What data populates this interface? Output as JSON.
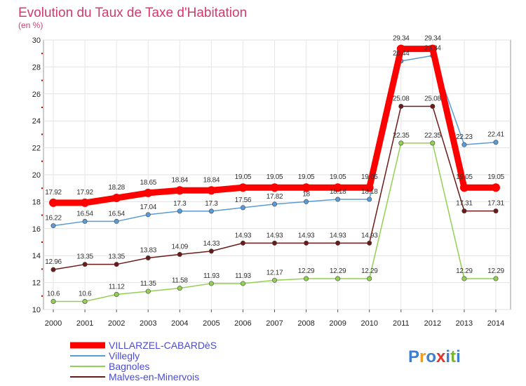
{
  "chart_data": {
    "type": "line",
    "title": "Evolution du Taux de Taxe d'Habitation",
    "subtitle": "(en %)",
    "xlabel": "",
    "ylabel": "",
    "x": [
      "2000",
      "2001",
      "2002",
      "2003",
      "2004",
      "2005",
      "2006",
      "2007",
      "2008",
      "2009",
      "2010",
      "2011",
      "2012",
      "2013",
      "2014"
    ],
    "ylim": [
      10,
      30
    ],
    "yticks": [
      "10",
      "12",
      "14",
      "16",
      "18",
      "20",
      "22",
      "24",
      "26",
      "28",
      "30"
    ],
    "grid": true,
    "legend_position": "bottom-left",
    "series": [
      {
        "name": "VILLARZEL-CABARDèS",
        "color": "#ff0000",
        "values": [
          17.92,
          17.92,
          18.28,
          18.65,
          18.84,
          18.84,
          19.05,
          19.05,
          19.05,
          19.05,
          19.05,
          29.34,
          29.34,
          19.05,
          19.05
        ],
        "labels": [
          "17.92",
          "17.92",
          "18.28",
          "18.65",
          "18.84",
          "18.84",
          "19.05",
          "19.05",
          "19.05",
          "19.05",
          "19.05",
          "29.34",
          "29.34",
          "19.05",
          "19.05"
        ]
      },
      {
        "name": "Villegly",
        "color": "#5b9bd5",
        "values": [
          16.22,
          16.54,
          16.54,
          17.04,
          17.3,
          17.3,
          17.56,
          17.82,
          18,
          18.18,
          18.18,
          28.44,
          28.84,
          22.23,
          22.41
        ],
        "labels": [
          "16.22",
          "16.54",
          "16.54",
          "17.04",
          "17.3",
          "17.3",
          "17.56",
          "17.82",
          "18",
          "18.18",
          "18.18",
          "28.44",
          "28.84",
          "22.23",
          "22.41"
        ]
      },
      {
        "name": "Bagnoles",
        "color": "#92d050",
        "values": [
          10.6,
          10.6,
          11.12,
          11.35,
          11.58,
          11.93,
          11.93,
          12.17,
          12.29,
          12.29,
          12.29,
          22.35,
          22.35,
          12.29,
          12.29
        ],
        "labels": [
          "10.6",
          "10.6",
          "11.12",
          "11.35",
          "11.58",
          "11.93",
          "11.93",
          "12.17",
          "12.29",
          "12.29",
          "12.29",
          "22.35",
          "22.35",
          "12.29",
          "12.29"
        ]
      },
      {
        "name": "Malves-en-Minervois",
        "color": "#6b1a1a",
        "values": [
          12.96,
          13.35,
          13.35,
          13.83,
          14.09,
          14.33,
          14.93,
          14.93,
          14.93,
          14.93,
          14.93,
          25.08,
          25.08,
          17.31,
          17.31
        ],
        "labels": [
          "12.96",
          "13.35",
          "13.35",
          "13.83",
          "14.09",
          "14.33",
          "14.93",
          "14.93",
          "14.93",
          "14.93",
          "14.93",
          "25.08",
          "25.08",
          "17.31",
          "17.31"
        ]
      }
    ]
  },
  "brand": {
    "name": "Proxiti",
    "letters": [
      "P",
      "r",
      "o",
      "x",
      "i",
      "t",
      "i"
    ],
    "colors": [
      "#3c7fd0",
      "#f29a1c",
      "#3c7fd0",
      "#e2342b",
      "#3c7fd0",
      "#79b530",
      "#3c7fd0"
    ]
  }
}
